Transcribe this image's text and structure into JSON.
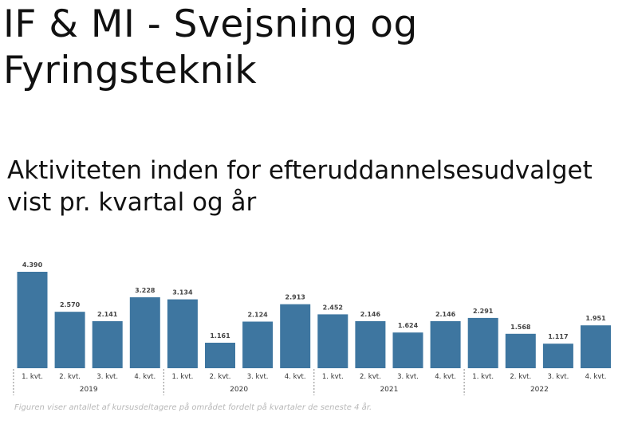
{
  "page": {
    "title": "IF & MI - Svejsning og Fyringsteknik",
    "caption": "Figuren viser antallet af kursusdeltagere på området fordelt på kvartaler de seneste 4 år."
  },
  "colors": {
    "bar": "#3e76a0",
    "label": "#444444",
    "axis_text": "#333333",
    "divider": "#888888"
  },
  "chart_data": {
    "type": "bar",
    "title": "Aktiviteten inden for efteruddannelsesudvalget vist pr. kvartal og år",
    "xlabel": "",
    "ylabel": "",
    "grid": false,
    "legend": "none",
    "groups": [
      {
        "name": "2019",
        "categories": [
          "1. kvt.",
          "2. kvt.",
          "3. kvt.",
          "4. kvt."
        ],
        "values": [
          4390,
          2570,
          2141,
          3228
        ],
        "labels": [
          "4.390",
          "2.570",
          "2.141",
          "3.228"
        ]
      },
      {
        "name": "2020",
        "categories": [
          "1. kvt.",
          "2. kvt.",
          "3. kvt.",
          "4. kvt."
        ],
        "values": [
          3134,
          1161,
          2124,
          2913
        ],
        "labels": [
          "3.134",
          "1.161",
          "2.124",
          "2.913"
        ]
      },
      {
        "name": "2021",
        "categories": [
          "1. kvt.",
          "2. kvt.",
          "3. kvt.",
          "4. kvt."
        ],
        "values": [
          2452,
          2146,
          1624,
          2146
        ],
        "labels": [
          "2.452",
          "2.146",
          "1.624",
          "2.146"
        ]
      },
      {
        "name": "2022",
        "categories": [
          "1. kvt.",
          "2. kvt.",
          "3. kvt.",
          "4. kvt."
        ],
        "values": [
          2291,
          1568,
          1117,
          1951
        ],
        "labels": [
          "2.291",
          "1.568",
          "1.117",
          "1.951"
        ]
      }
    ],
    "ylim": [
      0,
      4390
    ]
  }
}
